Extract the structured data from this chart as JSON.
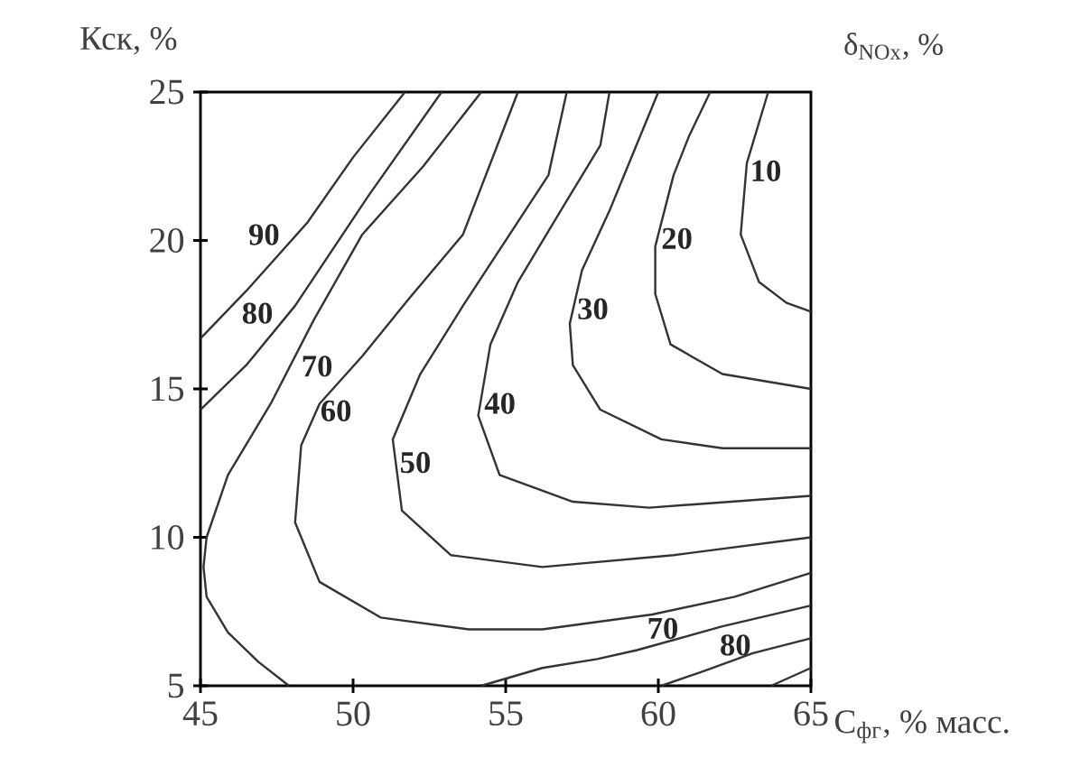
{
  "chart_data": {
    "type": "line",
    "xlabel": "C$_{фг}$, % масс.",
    "ylabel": "Кск, %",
    "annotations": [
      "δ$_{NOx}$, %"
    ],
    "xlim": [
      45,
      65
    ],
    "xticks": [
      45,
      50,
      55,
      60,
      65
    ],
    "ylim": [
      5,
      25
    ],
    "yticks": [
      5,
      10,
      15,
      20,
      25
    ],
    "legend": false,
    "grid": false,
    "marker": "none",
    "line_style": "solid",
    "series": [
      {
        "name": "90",
        "color": "#333333",
        "x": [
          51.7,
          50.0,
          48.5,
          46.5,
          45.0
        ],
        "values": [
          25,
          22.8,
          20.6,
          18.3,
          16.7
        ]
      },
      {
        "name": "80",
        "color": "#333333",
        "x": [
          52.9,
          50.5,
          48.1,
          46.5,
          45.0
        ],
        "values": [
          25,
          21.5,
          17.8,
          15.8,
          14.3
        ]
      },
      {
        "name": "70",
        "color": "#333333",
        "x": [
          54.2,
          52.3,
          50.3,
          48.7,
          47.3,
          45.9,
          45.2,
          45.1,
          45.2,
          45.9,
          46.9,
          47.9
        ],
        "values": [
          25,
          22.5,
          20.2,
          17.3,
          14.5,
          12.1,
          10,
          9,
          8,
          6.8,
          5.8,
          5
        ]
      },
      {
        "name": "60",
        "color": "#333333",
        "x": [
          55.4,
          53.6,
          51.8,
          50.3,
          48.9,
          48.3,
          48.1,
          48.9,
          50.9,
          53.8,
          56.2,
          59.8,
          62.5,
          65.0
        ],
        "values": [
          25,
          20.2,
          18.0,
          16.1,
          14.5,
          13.1,
          10.5,
          8.5,
          7.3,
          6.9,
          6.9,
          7.4,
          8.0,
          8.8
        ]
      },
      {
        "name": "50",
        "color": "#333333",
        "x": [
          57.0,
          56.4,
          55.0,
          53.6,
          52.2,
          51.3,
          51.6,
          53.2,
          56.2,
          60.5,
          65.0
        ],
        "values": [
          25,
          22.2,
          20.0,
          17.8,
          15.5,
          13.3,
          10.9,
          9.4,
          9.0,
          9.4,
          10.0
        ]
      },
      {
        "name": "40",
        "color": "#333333",
        "x": [
          58.4,
          58.1,
          56.8,
          55.4,
          54.5,
          54.1,
          54.8,
          57.2,
          59.7,
          65.0
        ],
        "values": [
          25,
          23.2,
          21.0,
          18.6,
          16.5,
          14.1,
          12.1,
          11.2,
          11.0,
          11.4
        ]
      },
      {
        "name": "30",
        "color": "#333333",
        "x": [
          60.0,
          59.2,
          58.4,
          57.5,
          57.1,
          57.2,
          58.1,
          60.1,
          62.1,
          65.0
        ],
        "values": [
          25,
          23.0,
          21.0,
          19.0,
          17.2,
          15.8,
          14.3,
          13.3,
          13.0,
          13.0
        ]
      },
      {
        "name": "20",
        "color": "#333333",
        "x": [
          61.7,
          61.0,
          60.5,
          59.9,
          59.9,
          60.4,
          62.1,
          65.0
        ],
        "values": [
          25,
          23.5,
          22.2,
          19.8,
          18.2,
          16.5,
          15.5,
          15.0
        ]
      },
      {
        "name": "10",
        "color": "#333333",
        "x": [
          63.6,
          62.9,
          62.7,
          63.3,
          64.2,
          65.0
        ],
        "values": [
          25,
          22.6,
          20.2,
          18.6,
          17.9,
          17.6
        ]
      },
      {
        "name": "70",
        "color": "#333333",
        "x": [
          54.2,
          56.2,
          58.0,
          59.3,
          62.1,
          65.0
        ],
        "values": [
          5,
          5.6,
          5.9,
          6.2,
          7.0,
          7.7
        ]
      },
      {
        "name": "80",
        "color": "#333333",
        "x": [
          60.1,
          61.5,
          63.1,
          65.0
        ],
        "values": [
          5,
          5.5,
          6.1,
          6.6
        ]
      },
      {
        "color": "#333333",
        "x": [
          63.7,
          65.0
        ],
        "values": [
          5,
          5.6
        ]
      }
    ]
  }
}
